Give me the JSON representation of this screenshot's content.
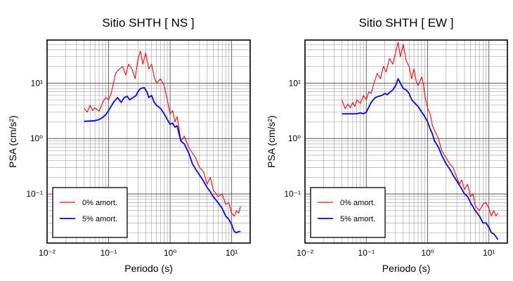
{
  "chart_data": [
    {
      "type": "line",
      "title": "Sitio SHTH [ NS ]",
      "xlabel": "Periodo (s)",
      "ylabel": "PSA (cm/s²)",
      "xscale": "log",
      "yscale": "log",
      "xlim": [
        0.01,
        20
      ],
      "ylim": [
        0.013,
        60
      ],
      "x_tick_labels": [
        "10⁻²",
        "10⁻¹",
        "10⁰",
        "10¹"
      ],
      "y_tick_labels": [
        "10⁻¹",
        "10⁰",
        "10¹"
      ],
      "grid": true,
      "legend_position": "bottom-left",
      "series": [
        {
          "name": "0% amort.",
          "color": "#ff0000",
          "points": [
            [
              0.04,
              3.5
            ],
            [
              0.045,
              3.0
            ],
            [
              0.05,
              4.0
            ],
            [
              0.055,
              3.2
            ],
            [
              0.06,
              3.6
            ],
            [
              0.07,
              3.1
            ],
            [
              0.08,
              4.5
            ],
            [
              0.09,
              5.5
            ],
            [
              0.1,
              5.0
            ],
            [
              0.11,
              6.5
            ],
            [
              0.12,
              10
            ],
            [
              0.13,
              15
            ],
            [
              0.15,
              18
            ],
            [
              0.17,
              20
            ],
            [
              0.19,
              14
            ],
            [
              0.21,
              22
            ],
            [
              0.24,
              18
            ],
            [
              0.27,
              12
            ],
            [
              0.3,
              27
            ],
            [
              0.33,
              38
            ],
            [
              0.36,
              22
            ],
            [
              0.4,
              35
            ],
            [
              0.45,
              18
            ],
            [
              0.5,
              22
            ],
            [
              0.55,
              13
            ],
            [
              0.6,
              10
            ],
            [
              0.7,
              12
            ],
            [
              0.8,
              9
            ],
            [
              0.9,
              5
            ],
            [
              1.0,
              2.8
            ],
            [
              1.1,
              3.2
            ],
            [
              1.2,
              2.0
            ],
            [
              1.3,
              2.5
            ],
            [
              1.4,
              1.5
            ],
            [
              1.5,
              0.9
            ],
            [
              1.7,
              1.1
            ],
            [
              2.0,
              0.7
            ],
            [
              2.3,
              0.55
            ],
            [
              2.6,
              0.45
            ],
            [
              3.0,
              0.3
            ],
            [
              3.5,
              0.25
            ],
            [
              4.0,
              0.15
            ],
            [
              4.5,
              0.2
            ],
            [
              5.0,
              0.12
            ],
            [
              6.0,
              0.09
            ],
            [
              7.0,
              0.1
            ],
            [
              8.0,
              0.065
            ],
            [
              9.0,
              0.07
            ],
            [
              10,
              0.045
            ],
            [
              11,
              0.04
            ],
            [
              12,
              0.05
            ],
            [
              13,
              0.045
            ],
            [
              14,
              0.06
            ]
          ]
        },
        {
          "name": "5% amort.",
          "color": "#0000ff",
          "points": [
            [
              0.04,
              2.05
            ],
            [
              0.06,
              2.1
            ],
            [
              0.07,
              2.2
            ],
            [
              0.08,
              2.4
            ],
            [
              0.09,
              2.7
            ],
            [
              0.1,
              3.2
            ],
            [
              0.12,
              4.5
            ],
            [
              0.14,
              5.5
            ],
            [
              0.16,
              4.5
            ],
            [
              0.18,
              5.5
            ],
            [
              0.2,
              5.8
            ],
            [
              0.22,
              5.0
            ],
            [
              0.25,
              5.5
            ],
            [
              0.28,
              6.0
            ],
            [
              0.3,
              7.0
            ],
            [
              0.33,
              8.0
            ],
            [
              0.38,
              8.3
            ],
            [
              0.42,
              7.0
            ],
            [
              0.45,
              5.5
            ],
            [
              0.5,
              6.0
            ],
            [
              0.55,
              4.5
            ],
            [
              0.6,
              4.0
            ],
            [
              0.7,
              3.5
            ],
            [
              0.8,
              2.8
            ],
            [
              0.9,
              2.2
            ],
            [
              1.0,
              1.8
            ],
            [
              1.1,
              1.9
            ],
            [
              1.2,
              1.6
            ],
            [
              1.3,
              1.7
            ],
            [
              1.4,
              1.2
            ],
            [
              1.5,
              0.9
            ],
            [
              1.7,
              0.8
            ],
            [
              2.0,
              0.55
            ],
            [
              2.3,
              0.35
            ],
            [
              2.6,
              0.28
            ],
            [
              3.0,
              0.22
            ],
            [
              3.5,
              0.17
            ],
            [
              4.0,
              0.13
            ],
            [
              4.5,
              0.11
            ],
            [
              5.0,
              0.09
            ],
            [
              6.0,
              0.07
            ],
            [
              7.0,
              0.055
            ],
            [
              8.0,
              0.04
            ],
            [
              9.0,
              0.035
            ],
            [
              10,
              0.028
            ],
            [
              11,
              0.021
            ],
            [
              12,
              0.02
            ],
            [
              13,
              0.021
            ],
            [
              14,
              0.021
            ]
          ]
        }
      ]
    },
    {
      "type": "line",
      "title": "Sitio SHTH [ EW ]",
      "xlabel": "Periodo (s)",
      "ylabel": "PSA (cm/s²)",
      "xscale": "log",
      "yscale": "log",
      "xlim": [
        0.01,
        20
      ],
      "ylim": [
        0.013,
        60
      ],
      "x_tick_labels": [
        "10⁻²",
        "10⁻¹",
        "10⁰",
        "10¹"
      ],
      "y_tick_labels": [
        "10⁻¹",
        "10⁰",
        "10¹"
      ],
      "grid": true,
      "legend_position": "bottom-left",
      "series": [
        {
          "name": "0% amort.",
          "color": "#ff0000",
          "points": [
            [
              0.04,
              5.0
            ],
            [
              0.045,
              3.5
            ],
            [
              0.05,
              4.2
            ],
            [
              0.055,
              3.6
            ],
            [
              0.06,
              4.5
            ],
            [
              0.065,
              3.8
            ],
            [
              0.07,
              5.0
            ],
            [
              0.08,
              4.3
            ],
            [
              0.09,
              6.0
            ],
            [
              0.1,
              5.0
            ],
            [
              0.11,
              7.0
            ],
            [
              0.12,
              6.5
            ],
            [
              0.13,
              9.0
            ],
            [
              0.15,
              15
            ],
            [
              0.17,
              12
            ],
            [
              0.19,
              20
            ],
            [
              0.21,
              16
            ],
            [
              0.24,
              28
            ],
            [
              0.27,
              22
            ],
            [
              0.3,
              35
            ],
            [
              0.33,
              55
            ],
            [
              0.36,
              30
            ],
            [
              0.4,
              50
            ],
            [
              0.45,
              25
            ],
            [
              0.5,
              20
            ],
            [
              0.55,
              12
            ],
            [
              0.6,
              18
            ],
            [
              0.65,
              11
            ],
            [
              0.7,
              9
            ],
            [
              0.8,
              13
            ],
            [
              0.85,
              10
            ],
            [
              0.9,
              6
            ],
            [
              1.0,
              3.5
            ],
            [
              1.1,
              2.8
            ],
            [
              1.2,
              1.7
            ],
            [
              1.3,
              1.4
            ],
            [
              1.5,
              1.0
            ],
            [
              1.7,
              0.6
            ],
            [
              2.0,
              0.45
            ],
            [
              2.3,
              0.35
            ],
            [
              2.6,
              0.3
            ],
            [
              3.0,
              0.2
            ],
            [
              3.3,
              0.15
            ],
            [
              3.6,
              0.18
            ],
            [
              4.0,
              0.12
            ],
            [
              4.5,
              0.15
            ],
            [
              5.0,
              0.09
            ],
            [
              5.5,
              0.1
            ],
            [
              6.0,
              0.06
            ],
            [
              7.0,
              0.05
            ],
            [
              8.0,
              0.065
            ],
            [
              9.0,
              0.07
            ],
            [
              10,
              0.055
            ],
            [
              11,
              0.04
            ],
            [
              12,
              0.05
            ],
            [
              13,
              0.04
            ],
            [
              14,
              0.045
            ]
          ]
        },
        {
          "name": "5% amort.",
          "color": "#0000ff",
          "points": [
            [
              0.04,
              2.8
            ],
            [
              0.06,
              2.8
            ],
            [
              0.07,
              2.8
            ],
            [
              0.08,
              2.9
            ],
            [
              0.09,
              2.8
            ],
            [
              0.1,
              3.0
            ],
            [
              0.12,
              4.5
            ],
            [
              0.14,
              5.5
            ],
            [
              0.16,
              5.8
            ],
            [
              0.18,
              6.0
            ],
            [
              0.2,
              6.5
            ],
            [
              0.22,
              6.2
            ],
            [
              0.24,
              6.8
            ],
            [
              0.27,
              7.5
            ],
            [
              0.3,
              9
            ],
            [
              0.33,
              12
            ],
            [
              0.36,
              10
            ],
            [
              0.4,
              8
            ],
            [
              0.45,
              7.5
            ],
            [
              0.5,
              6.5
            ],
            [
              0.55,
              5.0
            ],
            [
              0.6,
              4.5
            ],
            [
              0.7,
              3.8
            ],
            [
              0.8,
              3.0
            ],
            [
              0.9,
              2.5
            ],
            [
              1.0,
              2.0
            ],
            [
              1.1,
              1.5
            ],
            [
              1.2,
              1.2
            ],
            [
              1.3,
              0.9
            ],
            [
              1.5,
              0.7
            ],
            [
              1.7,
              0.5
            ],
            [
              2.0,
              0.35
            ],
            [
              2.3,
              0.28
            ],
            [
              2.6,
              0.22
            ],
            [
              3.0,
              0.17
            ],
            [
              3.5,
              0.13
            ],
            [
              4.0,
              0.1
            ],
            [
              4.5,
              0.09
            ],
            [
              5.0,
              0.07
            ],
            [
              6.0,
              0.05
            ],
            [
              7.0,
              0.04
            ],
            [
              8.0,
              0.03
            ],
            [
              9.0,
              0.03
            ],
            [
              10,
              0.025
            ],
            [
              11,
              0.02
            ],
            [
              12,
              0.019
            ],
            [
              13,
              0.017
            ],
            [
              14,
              0.015
            ]
          ]
        }
      ]
    }
  ]
}
